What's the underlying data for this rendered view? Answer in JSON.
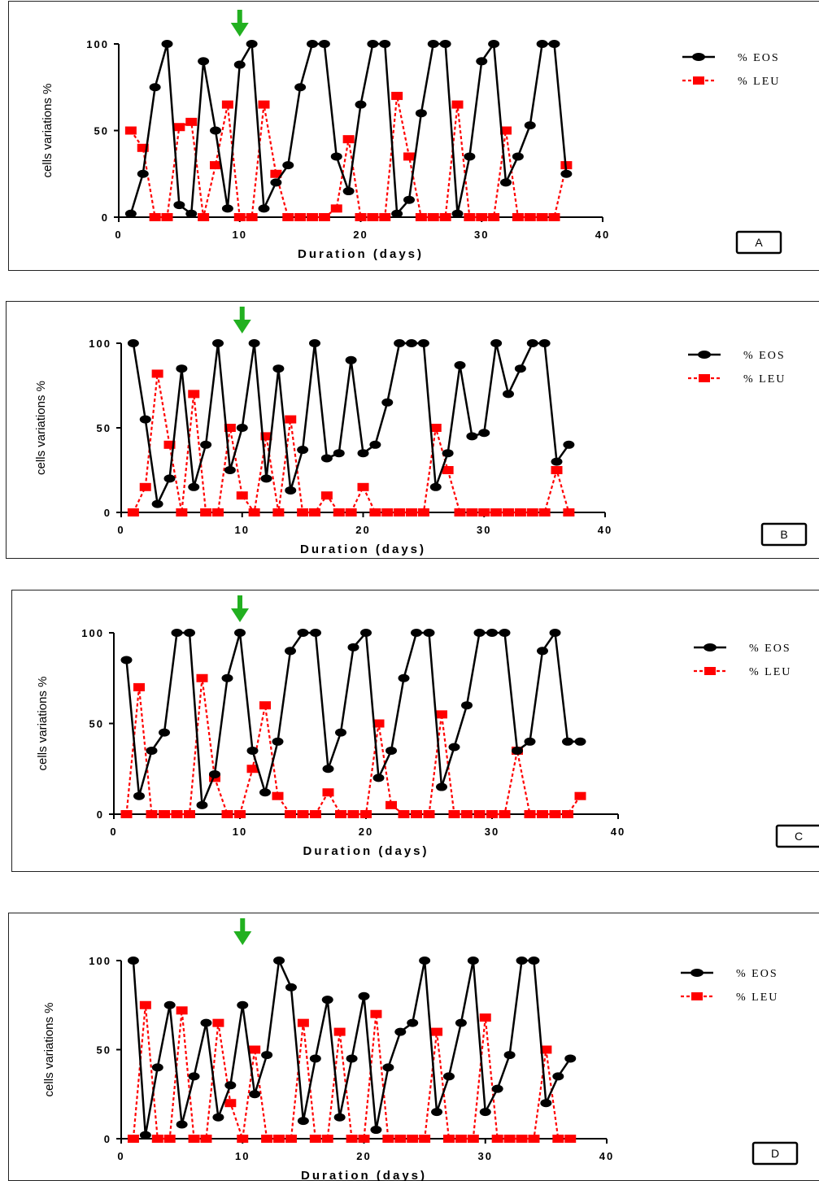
{
  "chart_data": [
    {
      "type": "line",
      "panel_label": "A",
      "xlabel": "Duration (days)",
      "ylabel": "cells variations %",
      "xlim": [
        0,
        40
      ],
      "ylim": [
        0,
        100
      ],
      "xticks": [
        "0",
        "10",
        "20",
        "30",
        "40"
      ],
      "yticks": [
        "0",
        "50",
        "100"
      ],
      "arrow_x": 10,
      "series": [
        {
          "name": "% EOS",
          "color": "#000000",
          "marker": "circle",
          "x": [
            1,
            2,
            3,
            4,
            5,
            6,
            7,
            8,
            9,
            10,
            11,
            12,
            13,
            14,
            15,
            16,
            17,
            18,
            19,
            20,
            21,
            22,
            23,
            24,
            25,
            26,
            27,
            28,
            29,
            30,
            31,
            32,
            33,
            34,
            35,
            36,
            37
          ],
          "y": [
            2,
            25,
            75,
            100,
            7,
            2,
            90,
            50,
            5,
            88,
            100,
            5,
            20,
            30,
            75,
            100,
            100,
            35,
            15,
            65,
            100,
            100,
            2,
            10,
            60,
            100,
            100,
            2,
            35,
            90,
            100,
            20,
            35,
            53,
            100,
            100,
            25
          ]
        },
        {
          "name": "% LEU",
          "color": "#ff0000",
          "marker": "square",
          "x": [
            1,
            2,
            3,
            4,
            5,
            6,
            7,
            8,
            9,
            10,
            11,
            12,
            13,
            14,
            15,
            16,
            17,
            18,
            19,
            20,
            21,
            22,
            23,
            24,
            25,
            26,
            27,
            28,
            29,
            30,
            31,
            32,
            33,
            34,
            35,
            36,
            37
          ],
          "y": [
            50,
            40,
            0,
            0,
            52,
            55,
            0,
            30,
            65,
            0,
            0,
            65,
            25,
            0,
            0,
            0,
            0,
            5,
            45,
            0,
            0,
            0,
            70,
            35,
            0,
            0,
            0,
            65,
            0,
            0,
            0,
            50,
            0,
            0,
            0,
            0,
            30
          ]
        }
      ]
    },
    {
      "type": "line",
      "panel_label": "B",
      "xlabel": "Duration (days)",
      "ylabel": "cells variations %",
      "xlim": [
        0,
        40
      ],
      "ylim": [
        0,
        100
      ],
      "xticks": [
        "0",
        "10",
        "20",
        "30",
        "40"
      ],
      "yticks": [
        "0",
        "50",
        "100"
      ],
      "arrow_x": 10,
      "series": [
        {
          "name": "% EOS",
          "color": "#000000",
          "marker": "circle",
          "x": [
            1,
            2,
            3,
            4,
            5,
            6,
            7,
            8,
            9,
            10,
            11,
            12,
            13,
            14,
            15,
            16,
            17,
            18,
            19,
            20,
            21,
            22,
            23,
            24,
            25,
            26,
            27,
            28,
            29,
            30,
            31,
            32,
            33,
            34,
            35,
            36,
            37
          ],
          "y": [
            100,
            55,
            5,
            20,
            85,
            15,
            40,
            100,
            25,
            50,
            100,
            20,
            85,
            13,
            37,
            100,
            32,
            35,
            90,
            35,
            40,
            65,
            100,
            100,
            100,
            15,
            35,
            87,
            45,
            47,
            100,
            70,
            85,
            100,
            100,
            30,
            40
          ]
        },
        {
          "name": "% LEU",
          "color": "#ff0000",
          "marker": "square",
          "x": [
            1,
            2,
            3,
            4,
            5,
            6,
            7,
            8,
            9,
            10,
            11,
            12,
            13,
            14,
            15,
            16,
            17,
            18,
            19,
            20,
            21,
            22,
            23,
            24,
            25,
            26,
            27,
            28,
            29,
            30,
            31,
            32,
            33,
            34,
            35,
            36,
            37
          ],
          "y": [
            0,
            15,
            82,
            40,
            0,
            70,
            0,
            0,
            50,
            10,
            0,
            45,
            0,
            55,
            0,
            0,
            10,
            0,
            0,
            15,
            0,
            0,
            0,
            0,
            0,
            50,
            25,
            0,
            0,
            0,
            0,
            0,
            0,
            0,
            0,
            25,
            0
          ]
        }
      ]
    },
    {
      "type": "line",
      "panel_label": "C",
      "xlabel": "Duration (days)",
      "ylabel": "cells variations %",
      "xlim": [
        0,
        40
      ],
      "ylim": [
        0,
        100
      ],
      "xticks": [
        "0",
        "10",
        "20",
        "30",
        "40"
      ],
      "yticks": [
        "0",
        "50",
        "100"
      ],
      "arrow_x": 10,
      "series": [
        {
          "name": "% EOS",
          "color": "#000000",
          "marker": "circle",
          "x": [
            1,
            2,
            3,
            4,
            5,
            6,
            7,
            8,
            9,
            10,
            11,
            12,
            13,
            14,
            15,
            16,
            17,
            18,
            19,
            20,
            21,
            22,
            23,
            24,
            25,
            26,
            27,
            28,
            29,
            30,
            31,
            32,
            33,
            34,
            35,
            36,
            37
          ],
          "y": [
            85,
            10,
            35,
            45,
            100,
            100,
            5,
            22,
            75,
            100,
            35,
            12,
            40,
            90,
            100,
            100,
            25,
            45,
            92,
            100,
            20,
            35,
            75,
            100,
            100,
            15,
            37,
            60,
            100,
            100,
            100,
            35,
            40,
            90,
            100,
            40,
            40
          ]
        },
        {
          "name": "% LEU",
          "color": "#ff0000",
          "marker": "square",
          "x": [
            1,
            2,
            3,
            4,
            5,
            6,
            7,
            8,
            9,
            10,
            11,
            12,
            13,
            14,
            15,
            16,
            17,
            18,
            19,
            20,
            21,
            22,
            23,
            24,
            25,
            26,
            27,
            28,
            29,
            30,
            31,
            32,
            33,
            34,
            35,
            36,
            37
          ],
          "y": [
            0,
            70,
            0,
            0,
            0,
            0,
            75,
            20,
            0,
            0,
            25,
            60,
            10,
            0,
            0,
            0,
            12,
            0,
            0,
            0,
            50,
            5,
            0,
            0,
            0,
            55,
            0,
            0,
            0,
            0,
            0,
            35,
            0,
            0,
            0,
            0,
            10
          ]
        }
      ]
    },
    {
      "type": "line",
      "panel_label": "D",
      "xlabel": "Duration (days)",
      "ylabel": "cells variations %",
      "xlim": [
        0,
        40
      ],
      "ylim": [
        0,
        100
      ],
      "xticks": [
        "0",
        "10",
        "20",
        "30",
        "40"
      ],
      "yticks": [
        "0",
        "50",
        "100"
      ],
      "arrow_x": 10,
      "series": [
        {
          "name": "% EOS",
          "color": "#000000",
          "marker": "circle",
          "x": [
            1,
            2,
            3,
            4,
            5,
            6,
            7,
            8,
            9,
            10,
            11,
            12,
            13,
            14,
            15,
            16,
            17,
            18,
            19,
            20,
            21,
            22,
            23,
            24,
            25,
            26,
            27,
            28,
            29,
            30,
            31,
            32,
            33,
            34,
            35,
            36,
            37
          ],
          "y": [
            100,
            2,
            40,
            75,
            8,
            35,
            65,
            12,
            30,
            75,
            25,
            47,
            100,
            85,
            10,
            45,
            78,
            12,
            45,
            80,
            5,
            40,
            60,
            65,
            100,
            15,
            35,
            65,
            100,
            15,
            28,
            47,
            100,
            100,
            20,
            35,
            45
          ]
        },
        {
          "name": "% LEU",
          "color": "#ff0000",
          "marker": "square",
          "x": [
            1,
            2,
            3,
            4,
            5,
            6,
            7,
            8,
            9,
            10,
            11,
            12,
            13,
            14,
            15,
            16,
            17,
            18,
            19,
            20,
            21,
            22,
            23,
            24,
            25,
            26,
            27,
            28,
            29,
            30,
            31,
            32,
            33,
            34,
            35,
            36,
            37
          ],
          "y": [
            0,
            75,
            0,
            0,
            72,
            0,
            0,
            65,
            20,
            0,
            50,
            0,
            0,
            0,
            65,
            0,
            0,
            60,
            0,
            0,
            70,
            0,
            0,
            0,
            0,
            60,
            0,
            0,
            0,
            68,
            0,
            0,
            0,
            0,
            50,
            0,
            0
          ]
        }
      ]
    }
  ]
}
